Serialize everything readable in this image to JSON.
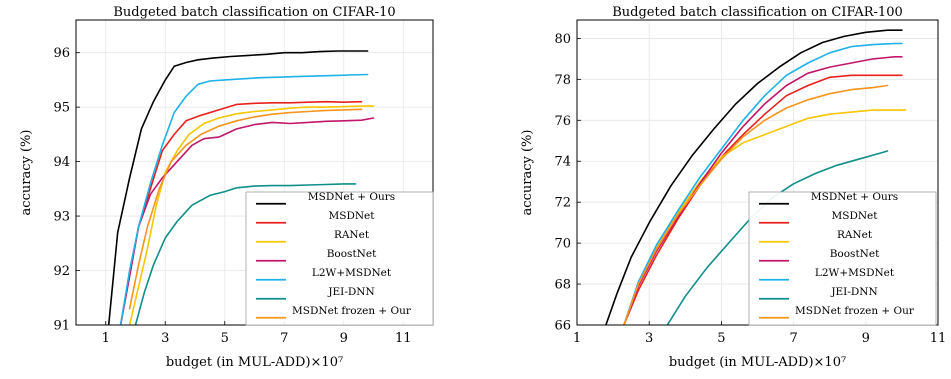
{
  "chart_data": [
    {
      "type": "line",
      "title": "Budgeted batch classification on CIFAR-10",
      "xlabel": "budget (in MUL-ADD)×10⁷",
      "ylabel": "accuracy (%)",
      "xlim": [
        0,
        12
      ],
      "ylim": [
        91,
        96.6
      ],
      "xticks": [
        1,
        3,
        5,
        7,
        9,
        11
      ],
      "yticks": [
        91,
        92,
        93,
        94,
        95,
        96
      ],
      "grid": true,
      "legend_position": "bottom-right",
      "series": [
        {
          "name": "MSDNet + Ours",
          "color": "#000000",
          "x": [
            1.1,
            1.4,
            1.8,
            2.2,
            2.6,
            3.0,
            3.3,
            3.7,
            4.1,
            4.6,
            5.2,
            5.8,
            6.4,
            7.0,
            7.6,
            8.2,
            8.8,
            9.4,
            9.8
          ],
          "y": [
            91.0,
            92.7,
            93.7,
            94.6,
            95.1,
            95.5,
            95.75,
            95.82,
            95.87,
            95.9,
            95.93,
            95.95,
            95.97,
            96.0,
            96.0,
            96.02,
            96.03,
            96.03,
            96.03
          ]
        },
        {
          "name": "MSDNet",
          "color": "#e8211d",
          "x": [
            1.5,
            1.8,
            2.1,
            2.5,
            2.9,
            3.3,
            3.7,
            4.2,
            4.8,
            5.4,
            6.0,
            6.6,
            7.2,
            7.8,
            8.4,
            9.0,
            9.6
          ],
          "y": [
            91.0,
            91.9,
            92.8,
            93.5,
            94.2,
            94.5,
            94.75,
            94.85,
            94.95,
            95.05,
            95.07,
            95.08,
            95.08,
            95.09,
            95.1,
            95.09,
            95.1
          ]
        },
        {
          "name": "RANet",
          "color": "#f7c600",
          "x": [
            1.8,
            2.1,
            2.4,
            2.7,
            3.0,
            3.4,
            3.8,
            4.3,
            4.8,
            5.4,
            6.0,
            6.6,
            7.2,
            7.8,
            8.4,
            9.0,
            9.6,
            10.0
          ],
          "y": [
            91.0,
            91.7,
            92.4,
            93.2,
            93.8,
            94.2,
            94.5,
            94.7,
            94.8,
            94.88,
            94.92,
            94.95,
            94.98,
            95.0,
            95.0,
            95.01,
            95.02,
            95.02
          ]
        },
        {
          "name": "BoostNet",
          "color": "#c0176a",
          "x": [
            1.5,
            1.8,
            2.1,
            2.5,
            2.9,
            3.4,
            3.9,
            4.3,
            4.8,
            5.4,
            6.0,
            6.6,
            7.2,
            7.8,
            8.4,
            9.0,
            9.6,
            10.0
          ],
          "y": [
            91.0,
            91.9,
            92.8,
            93.4,
            93.7,
            94.0,
            94.3,
            94.42,
            94.45,
            94.6,
            94.68,
            94.72,
            94.7,
            94.72,
            94.74,
            94.75,
            94.76,
            94.8
          ]
        },
        {
          "name": "L2W+MSDNet",
          "color": "#1eb1ea",
          "x": [
            1.5,
            1.8,
            2.1,
            2.5,
            2.9,
            3.3,
            3.7,
            4.1,
            4.5,
            5.0,
            5.6,
            6.2,
            6.8,
            7.4,
            8.0,
            8.6,
            9.2,
            9.8
          ],
          "y": [
            91.0,
            92.0,
            92.8,
            93.6,
            94.3,
            94.9,
            95.2,
            95.42,
            95.48,
            95.5,
            95.52,
            95.54,
            95.55,
            95.56,
            95.57,
            95.58,
            95.59,
            95.6
          ]
        },
        {
          "name": "JEI-DNN",
          "color": "#0f8e8a",
          "x": [
            2.0,
            2.3,
            2.6,
            3.0,
            3.4,
            3.9,
            4.5,
            5.0,
            5.4,
            6.0,
            6.6,
            7.2,
            7.8,
            8.4,
            9.0,
            9.4
          ],
          "y": [
            91.0,
            91.6,
            92.1,
            92.6,
            92.9,
            93.2,
            93.38,
            93.45,
            93.52,
            93.55,
            93.56,
            93.56,
            93.57,
            93.58,
            93.59,
            93.59
          ]
        },
        {
          "name": "MSDNet frozen + Our",
          "color": "#f7941d",
          "x": [
            1.8,
            2.1,
            2.4,
            2.8,
            3.2,
            3.7,
            4.2,
            4.8,
            5.4,
            6.0,
            6.6,
            7.2,
            7.8,
            8.4,
            9.0,
            9.6
          ],
          "y": [
            91.3,
            92.1,
            92.8,
            93.5,
            94.0,
            94.3,
            94.5,
            94.65,
            94.75,
            94.82,
            94.87,
            94.9,
            94.92,
            94.94,
            94.95,
            94.96
          ]
        }
      ]
    },
    {
      "type": "line",
      "title": "Budgeted batch classification on CIFAR-100",
      "xlabel": "budget (in MUL-ADD)×10⁷",
      "ylabel": "accuracy (%)",
      "xlim": [
        1,
        11
      ],
      "ylim": [
        66,
        80.9
      ],
      "xticks": [
        1,
        3,
        5,
        7,
        9,
        11
      ],
      "yticks": [
        66,
        68,
        70,
        72,
        74,
        76,
        78,
        80
      ],
      "grid": true,
      "legend_position": "bottom-right",
      "series": [
        {
          "name": "MSDNet + Ours",
          "color": "#000000",
          "x": [
            1.8,
            2.1,
            2.5,
            3.0,
            3.6,
            4.2,
            4.8,
            5.4,
            6.0,
            6.6,
            7.2,
            7.8,
            8.4,
            9.0,
            9.6,
            10.0
          ],
          "y": [
            66.0,
            67.5,
            69.3,
            71.0,
            72.8,
            74.3,
            75.6,
            76.8,
            77.8,
            78.6,
            79.3,
            79.8,
            80.1,
            80.3,
            80.4,
            80.4
          ]
        },
        {
          "name": "MSDNet",
          "color": "#e8211d",
          "x": [
            2.3,
            2.7,
            3.2,
            3.8,
            4.4,
            5.0,
            5.6,
            6.2,
            6.8,
            7.4,
            8.0,
            8.6,
            9.2,
            9.8,
            10.0
          ],
          "y": [
            66.0,
            67.7,
            69.4,
            71.2,
            72.8,
            74.2,
            75.3,
            76.3,
            77.2,
            77.7,
            78.1,
            78.2,
            78.2,
            78.2,
            78.2
          ]
        },
        {
          "name": "RANet",
          "color": "#f7c600",
          "x": [
            2.3,
            2.7,
            3.2,
            3.8,
            4.4,
            5.0,
            5.6,
            6.2,
            6.8,
            7.4,
            8.0,
            8.6,
            9.2,
            9.8,
            10.1
          ],
          "y": [
            66.0,
            68.0,
            69.8,
            71.5,
            73.0,
            74.2,
            74.9,
            75.3,
            75.7,
            76.1,
            76.3,
            76.4,
            76.5,
            76.5,
            76.5
          ]
        },
        {
          "name": "BoostNet",
          "color": "#c0176a",
          "x": [
            2.3,
            2.7,
            3.2,
            3.8,
            4.4,
            5.0,
            5.6,
            6.2,
            6.8,
            7.4,
            8.0,
            8.6,
            9.2,
            9.8,
            10.0
          ],
          "y": [
            66.0,
            67.9,
            69.6,
            71.3,
            72.9,
            74.4,
            75.7,
            76.8,
            77.7,
            78.3,
            78.6,
            78.8,
            79.0,
            79.1,
            79.1
          ]
        },
        {
          "name": "L2W+MSDNet",
          "color": "#1eb1ea",
          "x": [
            2.3,
            2.7,
            3.2,
            3.8,
            4.4,
            5.0,
            5.6,
            6.2,
            6.8,
            7.4,
            8.0,
            8.6,
            9.2,
            9.8,
            10.0
          ],
          "y": [
            66.0,
            68.1,
            69.9,
            71.6,
            73.2,
            74.6,
            76.0,
            77.2,
            78.2,
            78.8,
            79.3,
            79.6,
            79.7,
            79.75,
            79.75
          ]
        },
        {
          "name": "JEI-DNN",
          "color": "#0f8e8a",
          "x": [
            3.5,
            4.0,
            4.6,
            5.2,
            5.8,
            6.4,
            7.0,
            7.6,
            8.2,
            8.8,
            9.4,
            9.6
          ],
          "y": [
            66.0,
            67.4,
            68.8,
            70.0,
            71.2,
            72.2,
            72.9,
            73.4,
            73.8,
            74.1,
            74.4,
            74.5
          ]
        },
        {
          "name": "MSDNet frozen + Our",
          "color": "#f7941d",
          "x": [
            2.3,
            2.7,
            3.2,
            3.8,
            4.4,
            5.0,
            5.6,
            6.2,
            6.8,
            7.4,
            8.0,
            8.6,
            9.2,
            9.6
          ],
          "y": [
            66.0,
            68.0,
            69.7,
            71.4,
            72.8,
            74.1,
            75.2,
            76.0,
            76.6,
            77.0,
            77.3,
            77.5,
            77.6,
            77.7
          ]
        }
      ]
    }
  ]
}
